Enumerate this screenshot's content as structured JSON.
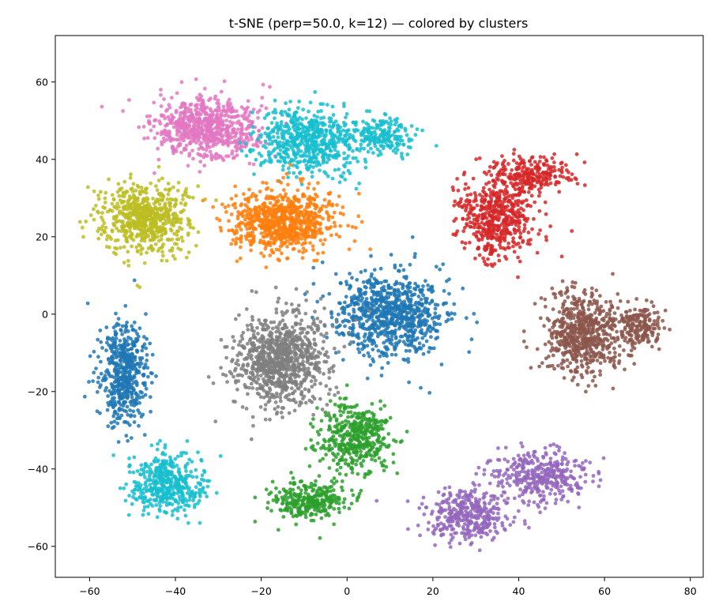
{
  "chart_data": {
    "type": "scatter",
    "title": "t-SNE (perp=50.0, k=12) — colored by clusters",
    "xlabel": "",
    "ylabel": "",
    "xlim": [
      -68,
      83
    ],
    "ylim": [
      -68,
      72
    ],
    "xticks": [
      -60,
      -40,
      -20,
      0,
      20,
      40,
      60,
      80
    ],
    "yticks": [
      -60,
      -40,
      -20,
      0,
      20,
      40,
      60
    ],
    "grid": false,
    "legend": "none",
    "marker_opacity": 0.85,
    "clusters": [
      {
        "color": "#e377c2",
        "n": 700,
        "center": [
          -33,
          48
        ],
        "spread": [
          11,
          7
        ],
        "blobs": [
          [
            -33,
            48,
            11,
            7,
            1
          ]
        ]
      },
      {
        "color": "#17becf",
        "n": 800,
        "center": [
          -6,
          45
        ],
        "spread": [
          13,
          8
        ],
        "blobs": [
          [
            -9,
            45,
            10,
            8,
            0.75
          ],
          [
            8,
            46,
            7,
            5,
            0.25
          ]
        ]
      },
      {
        "color": "#bcbd22",
        "n": 650,
        "center": [
          -47,
          25
        ],
        "spread": [
          9,
          8
        ],
        "blobs": [
          [
            -47,
            25,
            9,
            8,
            1
          ]
        ]
      },
      {
        "color": "#ff7f0e",
        "n": 800,
        "center": [
          -15,
          24
        ],
        "spread": [
          11,
          7
        ],
        "blobs": [
          [
            -15,
            24,
            11,
            7,
            1
          ]
        ]
      },
      {
        "color": "#d62728",
        "n": 750,
        "center": [
          36,
          28
        ],
        "spread": [
          9,
          10
        ],
        "blobs": [
          [
            35,
            25,
            8,
            10,
            0.7
          ],
          [
            43,
            36,
            8,
            4,
            0.3
          ]
        ]
      },
      {
        "color": "#8c564b",
        "n": 800,
        "center": [
          57,
          -5
        ],
        "spread": [
          9,
          9
        ],
        "blobs": [
          [
            55,
            -5,
            8,
            10,
            0.75
          ],
          [
            68,
            -3,
            5,
            5,
            0.25
          ]
        ]
      },
      {
        "color": "#1f77b4",
        "n": 1300,
        "center": [
          10,
          0
        ],
        "spread": [
          12,
          10
        ],
        "blobs": [
          [
            10,
            0,
            12,
            10,
            0.62
          ],
          [
            -52,
            -15,
            5,
            12,
            0.38
          ]
        ]
      },
      {
        "color": "#7f7f7f",
        "n": 900,
        "center": [
          -16,
          -12
        ],
        "spread": [
          10,
          11
        ],
        "blobs": [
          [
            -16,
            -12,
            10,
            11,
            1
          ]
        ]
      },
      {
        "color": "#2ca02c",
        "n": 750,
        "center": [
          -2,
          -37
        ],
        "spread": [
          10,
          9
        ],
        "blobs": [
          [
            2,
            -32,
            7,
            8,
            0.6
          ],
          [
            -9,
            -48,
            8,
            4,
            0.4
          ]
        ]
      },
      {
        "color": "#9467bd",
        "n": 750,
        "center": [
          38,
          -48
        ],
        "spread": [
          14,
          7
        ],
        "blobs": [
          [
            28,
            -52,
            9,
            6,
            0.5
          ],
          [
            45,
            -42,
            10,
            6,
            0.5
          ]
        ]
      },
      {
        "color": "#17becf",
        "n": 450,
        "center": [
          -42,
          -44
        ],
        "spread": [
          8,
          7
        ],
        "blobs": [
          [
            -42,
            -44,
            8,
            7,
            1
          ]
        ]
      }
    ]
  }
}
